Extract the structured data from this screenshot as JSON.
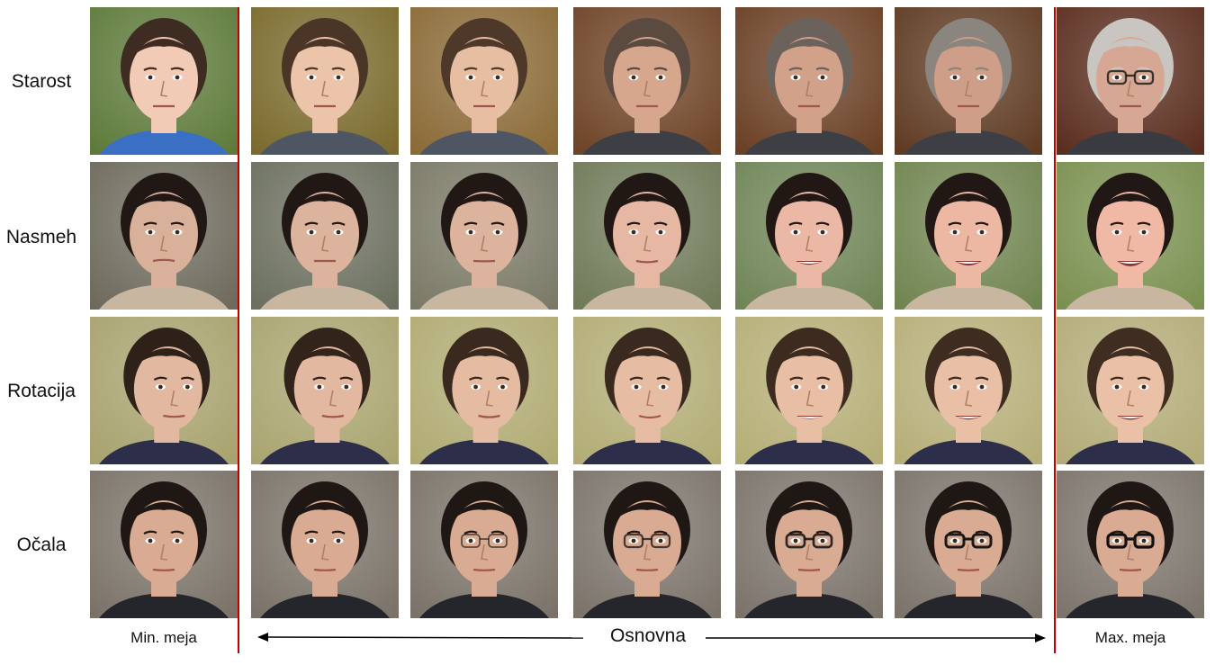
{
  "rows": [
    {
      "label": "Starost"
    },
    {
      "label": "Nasmeh"
    },
    {
      "label": "Rotacija"
    },
    {
      "label": "Očala"
    }
  ],
  "bottom": {
    "min": "Min. meja",
    "basic": "Osnovna",
    "max": "Max. meja"
  },
  "colors": {
    "divider": "#c00000",
    "arrow": "#000000"
  }
}
